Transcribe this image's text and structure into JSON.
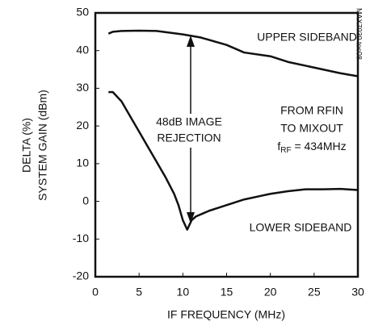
{
  "chart_data": {
    "type": "line",
    "x_label": "IF FREQUENCY (MHz)",
    "y_label": [
      "DELTA (%)",
      "SYSTEM GAIN (dBm)"
    ],
    "xlim": [
      0,
      30
    ],
    "xticks": [
      0,
      5,
      10,
      15,
      20,
      25,
      30
    ],
    "ylim": [
      -20,
      50
    ],
    "yticks": [
      -20,
      -10,
      0,
      10,
      20,
      30,
      40,
      50
    ],
    "grid": false,
    "series": [
      {
        "name": "UPPER SIDEBAND",
        "color": "#111111",
        "x": [
          1.5,
          2,
          3,
          5,
          7,
          10,
          12,
          15,
          17,
          20,
          22,
          25,
          28,
          30
        ],
        "values": [
          44.5,
          45,
          45.2,
          45.3,
          45.2,
          44.3,
          43.5,
          41.5,
          39.5,
          38.5,
          37,
          35.5,
          34,
          33.2
        ]
      },
      {
        "name": "LOWER SIDEBAND",
        "color": "#111111",
        "x": [
          1.5,
          2,
          3,
          4,
          5,
          6,
          7,
          8,
          9,
          9.5,
          10,
          10.5,
          11,
          11.5,
          12,
          13,
          15,
          17,
          19,
          20,
          22,
          24,
          26,
          28,
          30
        ],
        "values": [
          29,
          29,
          26.5,
          22.5,
          18.5,
          14.5,
          10.5,
          6.5,
          2,
          -1,
          -5,
          -7.5,
          -5,
          -4,
          -3.5,
          -2.5,
          -1,
          0.5,
          1.5,
          2,
          2.7,
          3.2,
          3.2,
          3.3,
          3
        ]
      }
    ],
    "annotations": {
      "rejection": [
        "48dB IMAGE",
        "REJECTION"
      ],
      "conditions": [
        "FROM RFIN",
        "TO MIXOUT"
      ],
      "frequency": {
        "symbol": "f",
        "subscript": "RF",
        "rest": " = 434MHz"
      },
      "figure_id": "MAX7030 toc08"
    }
  }
}
